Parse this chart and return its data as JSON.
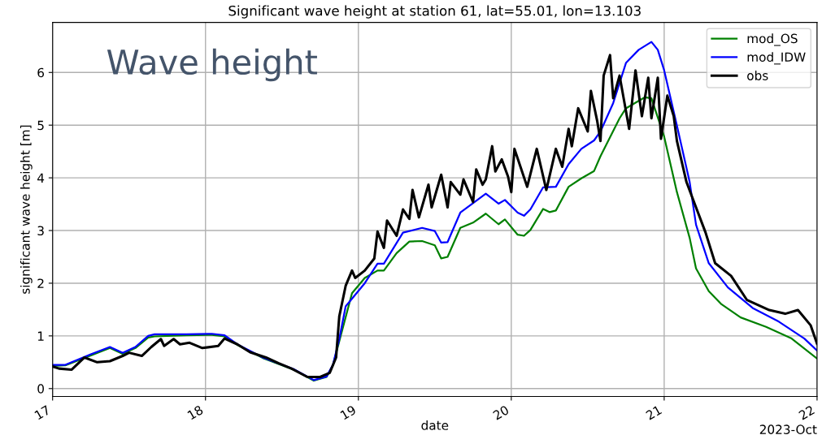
{
  "chart_data": {
    "type": "line",
    "title": "Significant wave height at station 61, lat=55.01, lon=13.103",
    "xlabel": "date",
    "ylabel": "significant wave height [m]",
    "annotations": [
      "Wave height",
      "2023-Oct"
    ],
    "xlim": [
      "2023-10-17",
      "2023-10-22"
    ],
    "xticks": [
      {
        "value": "2023-10-17",
        "label": "17"
      },
      {
        "value": "2023-10-18",
        "label": "18"
      },
      {
        "value": "2023-10-19",
        "label": "19"
      },
      {
        "value": "2023-10-20",
        "label": "20"
      },
      {
        "value": "2023-10-21",
        "label": "21"
      },
      {
        "value": "2023-10-22",
        "label": "22"
      }
    ],
    "ylim": [
      -0.15,
      6.95
    ],
    "yticks": [
      0,
      1,
      2,
      3,
      4,
      5,
      6
    ],
    "grid": true,
    "legend": "top right",
    "line_style": "solid",
    "series": [
      {
        "name": "mod_OS",
        "color": "#008000",
        "x": [
          "2023-10-17T00:00",
          "2023-10-17T02:00",
          "2023-10-17T06:00",
          "2023-10-17T09:00",
          "2023-10-17T11:00",
          "2023-10-17T13:00",
          "2023-10-17T15:00",
          "2023-10-17T16:00",
          "2023-10-17T21:00",
          "2023-10-18T01:00",
          "2023-10-18T03:00",
          "2023-10-18T05:00",
          "2023-10-18T09:00",
          "2023-10-18T14:00",
          "2023-10-18T17:00",
          "2023-10-18T19:00",
          "2023-10-18T20:00",
          "2023-10-18T21:00",
          "2023-10-18T23:00",
          "2023-10-19T01:00",
          "2023-10-19T03:00",
          "2023-10-19T04:00",
          "2023-10-19T06:00",
          "2023-10-19T08:00",
          "2023-10-19T10:00",
          "2023-10-19T12:00",
          "2023-10-19T13:00",
          "2023-10-19T14:00",
          "2023-10-19T16:00",
          "2023-10-19T18:00",
          "2023-10-19T20:00",
          "2023-10-19T22:00",
          "2023-10-19T23:00",
          "2023-10-20T01:00",
          "2023-10-20T02:00",
          "2023-10-20T03:00",
          "2023-10-20T05:00",
          "2023-10-20T06:00",
          "2023-10-20T07:00",
          "2023-10-20T09:00",
          "2023-10-20T11:00",
          "2023-10-20T13:00",
          "2023-10-20T14:00",
          "2023-10-20T17:00",
          "2023-10-20T18:00",
          "2023-10-20T20:00",
          "2023-10-20T21:00",
          "2023-10-20T22:00",
          "2023-10-21T00:00",
          "2023-10-21T02:00",
          "2023-10-21T04:00",
          "2023-10-21T05:00",
          "2023-10-21T07:00",
          "2023-10-21T09:00",
          "2023-10-21T12:00",
          "2023-10-21T16:00",
          "2023-10-21T20:00",
          "2023-10-22T00:00"
        ],
        "values": [
          0.43,
          0.44,
          0.63,
          0.77,
          0.66,
          0.77,
          0.97,
          0.99,
          1.01,
          1.02,
          0.99,
          0.83,
          0.58,
          0.35,
          0.15,
          0.22,
          0.44,
          0.9,
          1.81,
          2.1,
          2.24,
          2.24,
          2.57,
          2.79,
          2.8,
          2.72,
          2.47,
          2.5,
          3.05,
          3.15,
          3.32,
          3.12,
          3.21,
          2.92,
          2.9,
          3.01,
          3.41,
          3.35,
          3.38,
          3.83,
          3.99,
          4.13,
          4.41,
          5.13,
          5.32,
          5.46,
          5.53,
          5.51,
          4.78,
          3.73,
          2.86,
          2.28,
          1.85,
          1.6,
          1.35,
          1.17,
          0.95,
          0.57
        ]
      },
      {
        "name": "mod_IDW",
        "color": "#0000ff",
        "x": [
          "2023-10-17T00:00",
          "2023-10-17T02:00",
          "2023-10-17T06:00",
          "2023-10-17T09:00",
          "2023-10-17T11:00",
          "2023-10-17T13:00",
          "2023-10-17T15:00",
          "2023-10-17T16:00",
          "2023-10-17T21:00",
          "2023-10-18T01:00",
          "2023-10-18T03:00",
          "2023-10-18T05:00",
          "2023-10-18T09:00",
          "2023-10-18T14:00",
          "2023-10-18T17:00",
          "2023-10-18T19:00",
          "2023-10-18T20:00",
          "2023-10-18T21:00",
          "2023-10-18T22:00",
          "2023-10-19T01:00",
          "2023-10-19T03:00",
          "2023-10-19T04:00",
          "2023-10-19T07:00",
          "2023-10-19T10:00",
          "2023-10-19T12:00",
          "2023-10-19T13:00",
          "2023-10-19T14:00",
          "2023-10-19T16:00",
          "2023-10-19T20:00",
          "2023-10-19T22:00",
          "2023-10-19T23:00",
          "2023-10-20T01:00",
          "2023-10-20T02:00",
          "2023-10-20T03:00",
          "2023-10-20T05:00",
          "2023-10-20T07:00",
          "2023-10-20T09:00",
          "2023-10-20T11:00",
          "2023-10-20T13:00",
          "2023-10-20T14:00",
          "2023-10-20T16:00",
          "2023-10-20T18:00",
          "2023-10-20T20:00",
          "2023-10-20T22:00",
          "2023-10-20T23:00",
          "2023-10-21T00:00",
          "2023-10-21T02:00",
          "2023-10-21T04:00",
          "2023-10-21T05:00",
          "2023-10-21T07:00",
          "2023-10-21T10:00",
          "2023-10-21T14:00",
          "2023-10-21T18:00",
          "2023-10-21T22:00",
          "2023-10-22T00:00"
        ],
        "values": [
          0.45,
          0.45,
          0.65,
          0.79,
          0.68,
          0.79,
          1.0,
          1.03,
          1.03,
          1.04,
          1.01,
          0.84,
          0.59,
          0.36,
          0.16,
          0.23,
          0.45,
          0.94,
          1.56,
          2.0,
          2.37,
          2.37,
          2.96,
          3.05,
          2.99,
          2.77,
          2.78,
          3.34,
          3.7,
          3.51,
          3.58,
          3.34,
          3.28,
          3.4,
          3.82,
          3.83,
          4.26,
          4.55,
          4.71,
          4.88,
          5.42,
          6.18,
          6.43,
          6.58,
          6.43,
          6.04,
          4.99,
          3.92,
          3.11,
          2.38,
          1.92,
          1.52,
          1.27,
          0.95,
          0.72
        ]
      },
      {
        "name": "obs",
        "color": "#000000",
        "x": [
          "2023-10-17T00:00",
          "2023-10-17T01:00",
          "2023-10-17T03:00",
          "2023-10-17T05:00",
          "2023-10-17T07:00",
          "2023-10-17T09:00",
          "2023-10-17T11:00",
          "2023-10-17T12:00",
          "2023-10-17T14:00",
          "2023-10-17T15:30",
          "2023-10-17T17:00",
          "2023-10-17T17:30",
          "2023-10-17T19:00",
          "2023-10-17T20:00",
          "2023-10-17T21:30",
          "2023-10-17T23:30",
          "2023-10-18T02:00",
          "2023-10-18T03:00",
          "2023-10-18T05:00",
          "2023-10-18T07:00",
          "2023-10-18T09:30",
          "2023-10-18T11:30",
          "2023-10-18T13:30",
          "2023-10-18T16:00",
          "2023-10-18T18:00",
          "2023-10-18T19:30",
          "2023-10-18T20:30",
          "2023-10-18T21:00",
          "2023-10-18T22:00",
          "2023-10-18T23:00",
          "2023-10-18T23:30",
          "2023-10-19T01:00",
          "2023-10-19T02:30",
          "2023-10-19T03:00",
          "2023-10-19T04:00",
          "2023-10-19T04:30",
          "2023-10-19T06:00",
          "2023-10-19T07:00",
          "2023-10-19T08:00",
          "2023-10-19T08:30",
          "2023-10-19T09:30",
          "2023-10-19T11:00",
          "2023-10-19T11:30",
          "2023-10-19T13:00",
          "2023-10-19T14:00",
          "2023-10-19T14:30",
          "2023-10-19T16:00",
          "2023-10-19T16:30",
          "2023-10-19T18:00",
          "2023-10-19T18:30",
          "2023-10-19T19:30",
          "2023-10-19T20:00",
          "2023-10-19T21:00",
          "2023-10-19T21:30",
          "2023-10-19T22:30",
          "2023-10-19T23:30",
          "2023-10-20T00:00",
          "2023-10-20T00:30",
          "2023-10-20T02:30",
          "2023-10-20T04:00",
          "2023-10-20T05:30",
          "2023-10-20T07:00",
          "2023-10-20T08:00",
          "2023-10-20T09:00",
          "2023-10-20T09:30",
          "2023-10-20T10:30",
          "2023-10-20T12:00",
          "2023-10-20T12:30",
          "2023-10-20T13:30",
          "2023-10-20T14:00",
          "2023-10-20T14:30",
          "2023-10-20T15:30",
          "2023-10-20T16:00",
          "2023-10-20T17:00",
          "2023-10-20T18:30",
          "2023-10-20T19:30",
          "2023-10-20T20:30",
          "2023-10-20T21:30",
          "2023-10-20T22:00",
          "2023-10-20T23:00",
          "2023-10-20T23:30",
          "2023-10-21T00:30",
          "2023-10-21T01:30",
          "2023-10-21T02:00",
          "2023-10-21T03:30",
          "2023-10-21T05:00",
          "2023-10-21T06:30",
          "2023-10-21T08:00",
          "2023-10-21T10:30",
          "2023-10-21T13:00",
          "2023-10-21T16:30",
          "2023-10-21T19:00",
          "2023-10-21T21:00",
          "2023-10-21T23:00",
          "2023-10-22T00:00"
        ],
        "values": [
          0.42,
          0.38,
          0.36,
          0.59,
          0.5,
          0.52,
          0.62,
          0.68,
          0.62,
          0.79,
          0.94,
          0.81,
          0.94,
          0.84,
          0.87,
          0.77,
          0.81,
          0.95,
          0.84,
          0.69,
          0.59,
          0.48,
          0.38,
          0.22,
          0.22,
          0.3,
          0.59,
          1.37,
          1.95,
          2.24,
          2.1,
          2.24,
          2.47,
          2.98,
          2.67,
          3.19,
          2.9,
          3.4,
          3.22,
          3.77,
          3.25,
          3.87,
          3.44,
          4.06,
          3.44,
          3.92,
          3.68,
          3.97,
          3.54,
          4.16,
          3.87,
          3.97,
          4.6,
          4.12,
          4.35,
          4.02,
          3.73,
          4.55,
          3.83,
          4.55,
          3.77,
          4.55,
          4.21,
          4.93,
          4.6,
          5.32,
          4.88,
          5.65,
          5.07,
          4.7,
          5.94,
          6.33,
          5.51,
          5.94,
          4.93,
          6.04,
          5.17,
          5.9,
          5.13,
          5.9,
          4.74,
          5.56,
          5.17,
          4.7,
          3.92,
          3.44,
          2.96,
          2.38,
          2.14,
          1.68,
          1.49,
          1.42,
          1.49,
          1.2,
          0.85
        ]
      }
    ]
  }
}
